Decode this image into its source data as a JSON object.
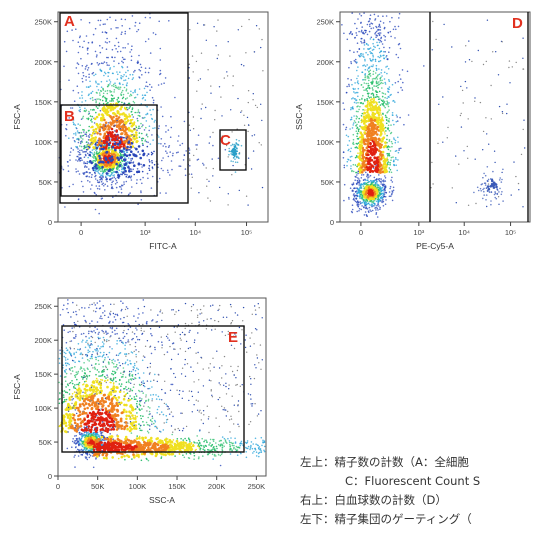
{
  "chart_data": [
    {
      "type": "scatter",
      "subtype": "flow-cytometry-density-plot",
      "xlabel": "FITC-A",
      "ylabel": "FSC-A",
      "x_scale": "biexponential",
      "x_ticks": [
        "0",
        "10³",
        "10⁴",
        "10⁵"
      ],
      "y_ticks": [
        "0",
        "50K",
        "100K",
        "150K",
        "200K",
        "250K"
      ],
      "ylim": [
        0,
        262144
      ],
      "gates": [
        {
          "label": "A",
          "x_range": [
            "-",
            "5000"
          ],
          "y_range": [
            "22000",
            "262144"
          ]
        },
        {
          "label": "B",
          "x_range": [
            "-",
            "1000"
          ],
          "y_range": [
            "25000",
            "145000"
          ]
        },
        {
          "label": "C",
          "x_range": [
            "30000",
            "50000"
          ],
          "y_range": [
            "65000",
            "110000"
          ]
        }
      ],
      "populations": [
        {
          "name": "main",
          "center": [
            "150",
            "75000"
          ]
        },
        {
          "name": "C-cluster",
          "center": [
            "40000",
            "90000"
          ]
        }
      ]
    },
    {
      "type": "scatter",
      "subtype": "flow-cytometry-density-plot",
      "xlabel": "PE-Cy5-A",
      "ylabel": "SSC-A",
      "x_scale": "biexponential",
      "x_ticks": [
        "0",
        "10³",
        "10⁴",
        "10⁵"
      ],
      "y_ticks": [
        "0",
        "50K",
        "100K",
        "150K",
        "200K",
        "250K"
      ],
      "ylim": [
        0,
        262144
      ],
      "gates": [
        {
          "label": "D",
          "x_range": [
            "1000",
            "100000"
          ],
          "y_range": [
            "0",
            "262144"
          ]
        }
      ],
      "populations": [
        {
          "name": "main",
          "center": [
            "100",
            "35000"
          ]
        },
        {
          "name": "D-cluster",
          "center": [
            "25000",
            "40000"
          ]
        }
      ]
    },
    {
      "type": "scatter",
      "subtype": "flow-cytometry-density-plot",
      "xlabel": "SSC-A",
      "ylabel": "FSC-A",
      "x_ticks": [
        "0",
        "50K",
        "100K",
        "150K",
        "200K",
        "250K"
      ],
      "y_ticks": [
        "0",
        "50K",
        "100K",
        "150K",
        "200K",
        "250K"
      ],
      "xlim": [
        0,
        262144
      ],
      "ylim": [
        0,
        262144
      ],
      "gates": [
        {
          "label": "E",
          "x_range": [
            "5000",
            "235000"
          ],
          "y_range": [
            "40000",
            "225000"
          ]
        }
      ],
      "populations": [
        {
          "name": "main",
          "center": [
            "25000",
            "80000"
          ]
        }
      ]
    }
  ],
  "caption": {
    "line1": "左上：精子数の計数（A：全細胞",
    "line2": "C：Fluorescent Count S",
    "line3": "右上：白血球数の計数（D）",
    "line4": "左下：精子集団のゲーティング（"
  },
  "colors": {
    "gate_label": "#e1301f",
    "density": [
      "#2040b8",
      "#20a0d8",
      "#30c070",
      "#f0e020",
      "#f08020",
      "#e02010"
    ]
  }
}
